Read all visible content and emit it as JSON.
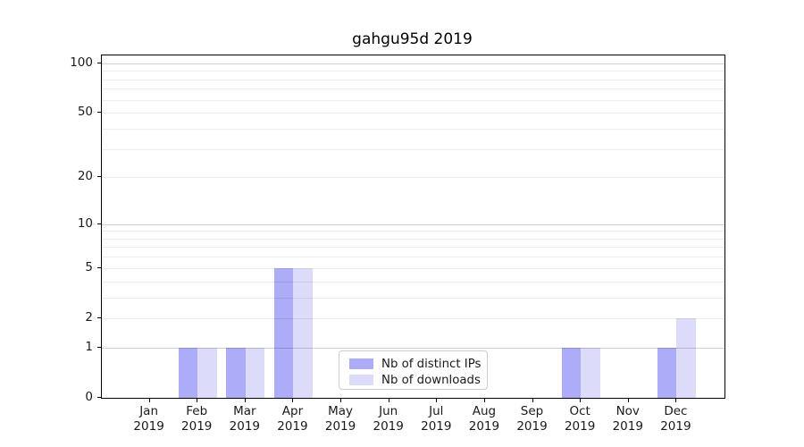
{
  "chart_data": {
    "type": "bar",
    "title": "gahgu95d 2019",
    "categories": [
      "Jan",
      "Feb",
      "Mar",
      "Apr",
      "May",
      "Jun",
      "Jul",
      "Aug",
      "Sep",
      "Oct",
      "Nov",
      "Dec"
    ],
    "category_sub_label": "2019",
    "series": [
      {
        "name": "Nb of distinct IPs",
        "color": "#acacf8",
        "values": [
          0,
          1,
          1,
          5,
          0,
          0,
          0,
          0,
          0,
          1,
          0,
          1
        ]
      },
      {
        "name": "Nb of downloads",
        "color": "#dcdcfa",
        "values": [
          0,
          1,
          1,
          5,
          0,
          0,
          0,
          0,
          0,
          1,
          0,
          2
        ]
      }
    ],
    "y_axis": {
      "scale": "log10(value+1)",
      "tick_values": [
        0,
        1,
        2,
        5,
        10,
        20,
        50,
        100
      ],
      "major_grid_values": [
        1,
        10,
        100
      ],
      "minor_grid_values": [
        2,
        3,
        4,
        5,
        6,
        7,
        8,
        9,
        20,
        30,
        40,
        50,
        60,
        70,
        80,
        90
      ],
      "ylim": [
        0,
        111
      ]
    },
    "legend": {
      "position": "lower center"
    },
    "grid": "on"
  }
}
